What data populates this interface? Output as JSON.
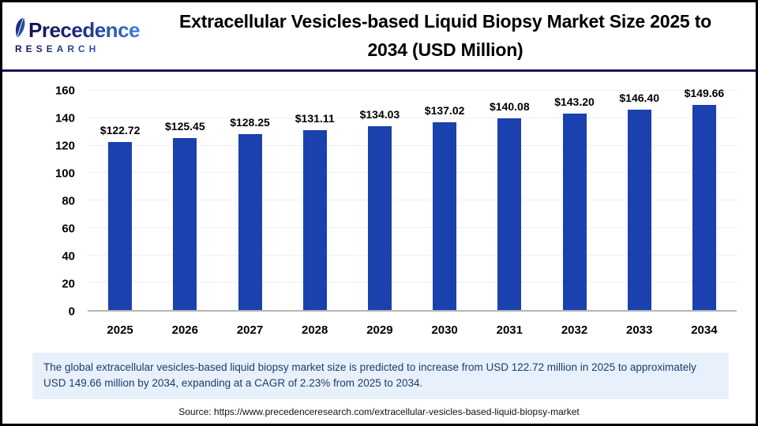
{
  "header": {
    "logo_name": "Precedence",
    "logo_sub": "RESEARCH",
    "title_line1": "Extracellular Vesicles-based Liquid Biopsy Market Size 2025 to",
    "title_line2": "2034 (USD Million)"
  },
  "chart_data": {
    "type": "bar",
    "title": "Extracellular Vesicles-based Liquid Biopsy Market Size 2025 to 2034 (USD Million)",
    "categories": [
      "2025",
      "2026",
      "2027",
      "2028",
      "2029",
      "2030",
      "2031",
      "2032",
      "2033",
      "2034"
    ],
    "values": [
      122.72,
      125.45,
      128.25,
      131.11,
      134.03,
      137.02,
      140.08,
      143.2,
      146.4,
      149.66
    ],
    "value_labels": [
      "$122.72",
      "$125.45",
      "$128.25",
      "$131.11",
      "$134.03",
      "$137.02",
      "$140.08",
      "$143.20",
      "$146.40",
      "$149.66"
    ],
    "xlabel": "",
    "ylabel": "",
    "ylim": [
      0,
      160
    ],
    "yticks": [
      0,
      20,
      40,
      60,
      80,
      100,
      120,
      140,
      160
    ],
    "grid": true,
    "legend": false,
    "bar_color": "#1a41ad"
  },
  "note": {
    "text": "The global extracellular vesicles-based liquid biopsy market size is predicted to increase from USD 122.72 million in 2025 to approximately USD 149.66 million by 2034, expanding at a CAGR of 2.23% from 2025 to 2034."
  },
  "source": {
    "text": "Source: https://www.precedenceresearch.com/extracellular-vesicles-based-liquid-biopsy-market"
  }
}
